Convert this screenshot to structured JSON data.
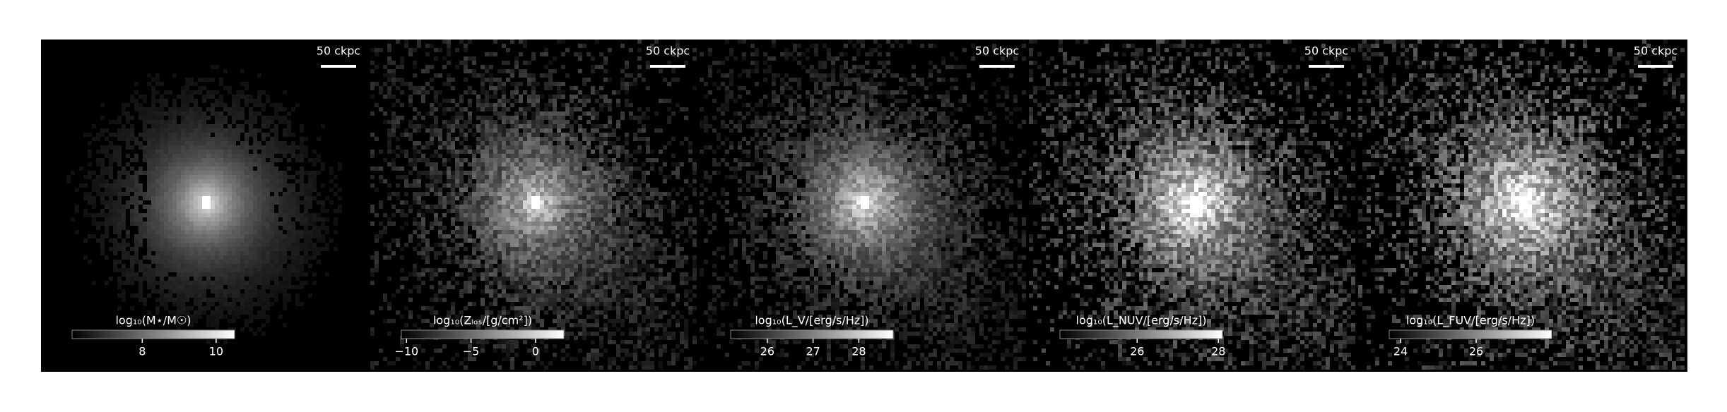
{
  "chart_data": [
    {
      "type": "heatmap",
      "scalebar_label": "50 ckpc",
      "colorbar_label": "log₁₀(M⋆/M☉)",
      "clim": [
        6.1,
        10.5
      ],
      "cticks": [
        8,
        10
      ]
    },
    {
      "type": "heatmap",
      "scalebar_label": "50 ckpc",
      "colorbar_label": "log₁₀(Zₗₒₛ/[g/cm²])",
      "clim": [
        -10.4,
        2.2
      ],
      "cticks": [
        {
          "value": -10,
          "label": "−10"
        },
        {
          "value": -5,
          "label": "−5"
        },
        0
      ]
    },
    {
      "type": "heatmap",
      "scalebar_label": "50 ckpc",
      "colorbar_label": "log₁₀(L_V/[erg/s/Hz])",
      "clim": [
        25.2,
        28.75
      ],
      "cticks": [
        26,
        27,
        28
      ]
    },
    {
      "type": "heatmap",
      "scalebar_label": "50 ckpc",
      "colorbar_label": "log₁₀(L_NUV/[erg/s/Hz])",
      "clim": [
        24.1,
        28.1
      ],
      "cticks": [
        26,
        28
      ]
    },
    {
      "type": "heatmap",
      "scalebar_label": "50 ckpc",
      "colorbar_label": "log₁₀(L_FUV/[erg/s/Hz])",
      "clim": [
        23.7,
        28.0
      ],
      "cticks": [
        24,
        26
      ]
    }
  ]
}
